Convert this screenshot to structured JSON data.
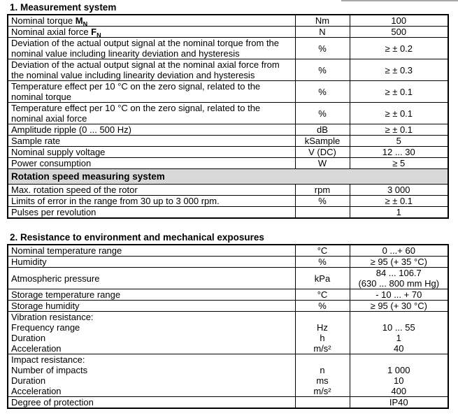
{
  "titles": {
    "section1": "1. Measurement system",
    "section2": "2. Resistance to environment and mechanical exposures"
  },
  "colors": {
    "section_band": "#d9d9d9",
    "table_border": "#000000",
    "artifact_line": "#a8a8a8"
  },
  "tables": [
    {
      "rows": [
        {
          "type": "data",
          "param": {
            "parts": [
              {
                "text": "Nominal torque ",
                "style": "normal"
              },
              {
                "text": "M",
                "style": "bold"
              },
              {
                "text": "N",
                "style": "bold-sub"
              }
            ]
          },
          "unit": [
            "Nm"
          ],
          "value": [
            "100"
          ]
        },
        {
          "type": "data",
          "param": {
            "parts": [
              {
                "text": "Nominal axial force ",
                "style": "normal"
              },
              {
                "text": "F",
                "style": "bold"
              },
              {
                "text": "N",
                "style": "bold-sub"
              }
            ]
          },
          "unit": [
            "N"
          ],
          "value": [
            "500"
          ]
        },
        {
          "type": "data",
          "param": [
            "Deviation of the actual output signal at the nominal torque from the",
            "nominal value including linearity deviation and hysteresis"
          ],
          "unit": [
            "%"
          ],
          "value": [
            "≥ ± 0.2"
          ]
        },
        {
          "type": "data",
          "param": [
            "Deviation of the actual output signal at the nominal axial force from",
            "the nominal value including linearity deviation and hysteresis"
          ],
          "unit": [
            "%"
          ],
          "value": [
            "≥ ± 0.3"
          ]
        },
        {
          "type": "data",
          "param": [
            "Temperature effect per 10 °C on the zero signal, related to the",
            "nominal torque"
          ],
          "unit": [
            "%"
          ],
          "value": [
            "≥ ± 0.1"
          ]
        },
        {
          "type": "data",
          "param": [
            "Temperature effect per 10 °C on the zero signal, related to the",
            "nominal axial force"
          ],
          "unit": [
            "%"
          ],
          "value": [
            "≥ ± 0.1"
          ]
        },
        {
          "type": "data",
          "param": [
            "Amplitude ripple (0 ... 500 Hz)"
          ],
          "unit": [
            "dB"
          ],
          "value": [
            "≥ ± 0.1"
          ]
        },
        {
          "type": "data",
          "param": [
            "Sample rate"
          ],
          "unit": [
            "kSample"
          ],
          "value": [
            "5"
          ]
        },
        {
          "type": "data",
          "param": [
            "Nominal supply voltage"
          ],
          "unit": [
            "V (DC)"
          ],
          "value": [
            "12 ... 30"
          ]
        },
        {
          "type": "data",
          "param": [
            "Power consumption"
          ],
          "unit": [
            "W"
          ],
          "value": [
            "≥ 5"
          ]
        },
        {
          "type": "section",
          "label": "Rotation speed measuring system"
        },
        {
          "type": "data",
          "param": [
            "Max. rotation speed of the rotor"
          ],
          "unit": [
            "rpm"
          ],
          "value": [
            "3 000"
          ]
        },
        {
          "type": "data",
          "param": [
            "Limits of error in the range from 30 up to 3 000 rpm."
          ],
          "unit": [
            "%"
          ],
          "value": [
            "≥ ± 0.1"
          ]
        },
        {
          "type": "data",
          "param": [
            "Pulses per revolution"
          ],
          "unit": [
            ""
          ],
          "value": [
            "1"
          ]
        }
      ]
    },
    {
      "rows": [
        {
          "type": "data",
          "param": [
            "Nominal temperature range"
          ],
          "unit": [
            "°C"
          ],
          "value": [
            "0 ...+ 60"
          ]
        },
        {
          "type": "data",
          "param": [
            "Humidity"
          ],
          "unit": [
            "%"
          ],
          "value": [
            "≥ 95 (+ 35 °C)"
          ]
        },
        {
          "type": "data",
          "param": [
            "Atmospheric pressure"
          ],
          "unit": [
            "kPa"
          ],
          "value": [
            "84 ... 106.7",
            "(630 ... 800 mm Hg)"
          ]
        },
        {
          "type": "data",
          "param": [
            "Storage temperature range"
          ],
          "unit": [
            "°C"
          ],
          "value": [
            "- 10 ... + 70"
          ]
        },
        {
          "type": "data",
          "param": [
            "Storage humidity"
          ],
          "unit": [
            "%"
          ],
          "value": [
            "≥ 95 (+ 30 °C)"
          ]
        },
        {
          "type": "data",
          "param": [
            "Vibration resistance:",
            "Frequency range",
            "Duration",
            "Acceleration"
          ],
          "unit": [
            "",
            "Hz",
            "h",
            "m/s²"
          ],
          "value": [
            "",
            "10 ... 55",
            "1",
            "40"
          ]
        },
        {
          "type": "data",
          "param": [
            "Impact resistance:",
            "Number of impacts",
            "Duration",
            "Acceleration"
          ],
          "unit": [
            "",
            "n",
            "ms",
            "m/s²"
          ],
          "value": [
            "",
            "1 000",
            "10",
            "400"
          ]
        },
        {
          "type": "data",
          "param": [
            "Degree of protection"
          ],
          "unit": [
            ""
          ],
          "value": [
            "IP40"
          ]
        }
      ]
    }
  ]
}
